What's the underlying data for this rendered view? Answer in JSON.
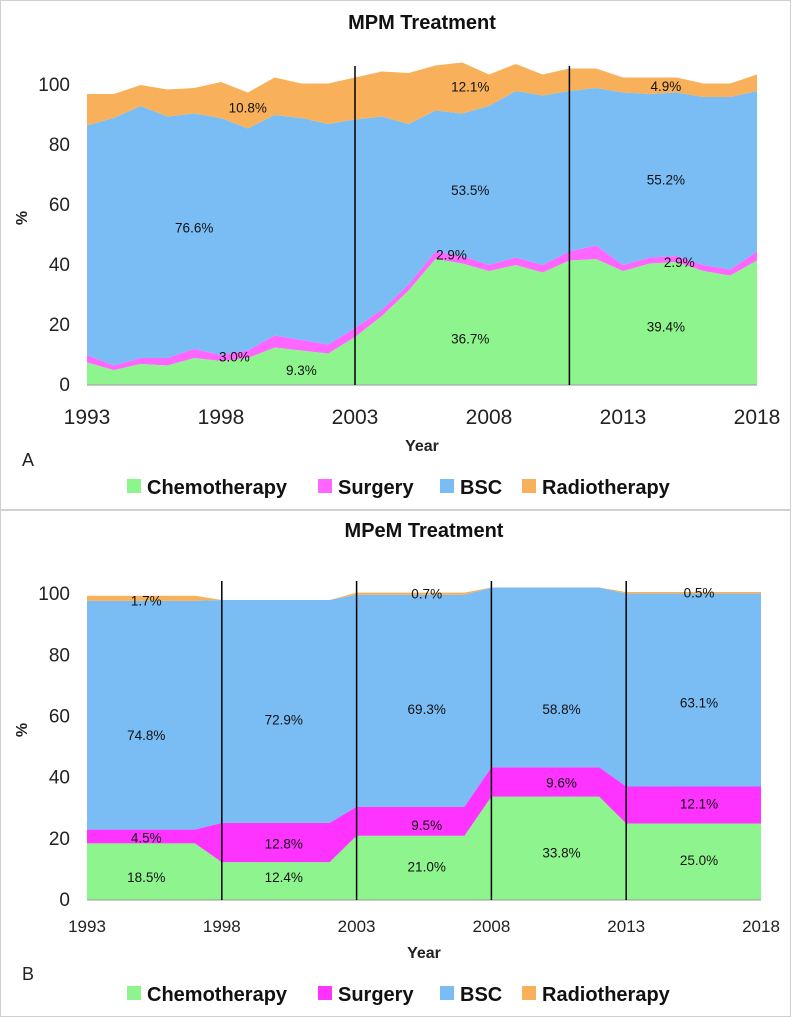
{
  "chart_data": [
    {
      "panel": "A",
      "type": "area",
      "stacked": true,
      "title": "MPM Treatment",
      "xlabel": "Year",
      "ylabel": "%",
      "xlim": [
        1993,
        2018
      ],
      "ylim": [
        0,
        105
      ],
      "xticks": [
        1993,
        1998,
        2003,
        2008,
        2013,
        2018
      ],
      "yticks": [
        0,
        20,
        40,
        60,
        80,
        100
      ],
      "x": [
        1993,
        1994,
        1995,
        1996,
        1997,
        1998,
        1999,
        2000,
        2001,
        2002,
        2003,
        2004,
        2005,
        2006,
        2007,
        2008,
        2009,
        2010,
        2011,
        2012,
        2013,
        2014,
        2015,
        2016,
        2017,
        2018
      ],
      "series": [
        {
          "name": "Chemotherapy",
          "color": "#8ef58e",
          "values": [
            7.5,
            5,
            7,
            6.5,
            9,
            8,
            9,
            12.5,
            11.5,
            10.5,
            16,
            23,
            31.5,
            42,
            40.5,
            38,
            40,
            37.5,
            41.5,
            42,
            38,
            40.5,
            41,
            38,
            36.5,
            41.5
          ]
        },
        {
          "name": "Surgery",
          "color": "#ff66ff",
          "values": [
            2.5,
            1.5,
            2,
            2.5,
            3,
            2,
            2.5,
            4,
            3.5,
            3,
            3,
            2,
            2,
            2.5,
            2.5,
            2,
            2.5,
            2.5,
            3,
            4.5,
            2,
            2,
            2,
            2,
            2,
            3
          ]
        },
        {
          "name": "BSC",
          "color": "#79bdf4",
          "values": [
            76.5,
            82.5,
            84,
            80.5,
            78.5,
            79,
            74,
            73.5,
            74,
            73.5,
            69.5,
            64.5,
            53.5,
            47,
            47.5,
            53,
            55.5,
            56.5,
            53.5,
            52.5,
            57.5,
            54.5,
            54.5,
            56,
            57.5,
            53.5
          ]
        },
        {
          "name": "Radiotherapy",
          "color": "#f8b15a",
          "values": [
            10.5,
            8,
            7,
            9,
            8.5,
            12,
            12,
            12.5,
            11.5,
            13.5,
            14,
            15,
            17,
            15,
            17,
            10.5,
            9,
            7,
            7.5,
            6.5,
            5,
            5.5,
            5,
            4.5,
            4.5,
            5.5
          ]
        }
      ],
      "period_dividers": [
        2003,
        2011
      ],
      "annotations": [
        {
          "text": "10.8%",
          "x": 1999,
          "y": 92.5
        },
        {
          "text": "76.6%",
          "x": 1997,
          "y": 52.5
        },
        {
          "text": "3.0%",
          "x": 1998.5,
          "y": 9.5
        },
        {
          "text": "9.3%",
          "x": 2001,
          "y": 5
        },
        {
          "text": "12.1%",
          "x": 2007.3,
          "y": 99.5
        },
        {
          "text": "53.5%",
          "x": 2007.3,
          "y": 65
        },
        {
          "text": "2.9%",
          "x": 2006.6,
          "y": 43.5
        },
        {
          "text": "36.7%",
          "x": 2007.3,
          "y": 15.5
        },
        {
          "text": "4.9%",
          "x": 2014.6,
          "y": 99.7
        },
        {
          "text": "55.2%",
          "x": 2014.6,
          "y": 68.5
        },
        {
          "text": "2.9%",
          "x": 2015.1,
          "y": 41
        },
        {
          "text": "39.4%",
          "x": 2014.6,
          "y": 19.5
        }
      ]
    },
    {
      "panel": "B",
      "type": "area",
      "stacked": true,
      "title": "MPeM Treatment",
      "xlabel": "Year",
      "ylabel": "%",
      "xlim": [
        1993,
        2018
      ],
      "ylim": [
        0,
        103
      ],
      "xticks": [
        1993,
        1998,
        2003,
        2008,
        2013,
        2018
      ],
      "yticks": [
        0,
        20,
        40,
        60,
        80,
        100
      ],
      "x": [
        1993,
        1997,
        1998,
        2002,
        2003,
        2007,
        2008,
        2012,
        2013,
        2018
      ],
      "series": [
        {
          "name": "Chemotherapy",
          "color": "#8ef58e",
          "values": [
            18.5,
            18.5,
            12.4,
            12.4,
            21,
            21,
            33.8,
            33.8,
            25,
            25
          ]
        },
        {
          "name": "Surgery",
          "color": "#ff33ff",
          "values": [
            4.5,
            4.5,
            12.8,
            12.8,
            9.5,
            9.5,
            9.6,
            9.6,
            12.1,
            12.1
          ]
        },
        {
          "name": "BSC",
          "color": "#79bdf4",
          "values": [
            74.8,
            74.8,
            72.9,
            72.9,
            69.3,
            69.3,
            58.8,
            58.8,
            63.1,
            63.1
          ]
        },
        {
          "name": "Radiotherapy",
          "color": "#f8b15a",
          "values": [
            1.7,
            1.7,
            0,
            0,
            0.7,
            0.7,
            0,
            0,
            0.5,
            0.5
          ]
        }
      ],
      "period_dividers": [
        1998,
        2003,
        2008,
        2013
      ],
      "annotations": [
        {
          "text": "1.7%",
          "x": 1995.2,
          "y": 98
        },
        {
          "text": "74.8%",
          "x": 1995.2,
          "y": 54
        },
        {
          "text": "4.5%",
          "x": 1995.2,
          "y": 20.5
        },
        {
          "text": "18.5%",
          "x": 1995.2,
          "y": 7.5
        },
        {
          "text": "72.9%",
          "x": 2000.3,
          "y": 59
        },
        {
          "text": "12.8%",
          "x": 2000.3,
          "y": 18.5
        },
        {
          "text": "12.4%",
          "x": 2000.3,
          "y": 7.5
        },
        {
          "text": "0.7%",
          "x": 2005.6,
          "y": 100.2
        },
        {
          "text": "69.3%",
          "x": 2005.6,
          "y": 62.5
        },
        {
          "text": "9.5%",
          "x": 2005.6,
          "y": 24.5
        },
        {
          "text": "21.0%",
          "x": 2005.6,
          "y": 11
        },
        {
          "text": "58.8%",
          "x": 2010.6,
          "y": 62.5
        },
        {
          "text": "9.6%",
          "x": 2010.6,
          "y": 38.5
        },
        {
          "text": "33.8%",
          "x": 2010.6,
          "y": 15.5
        },
        {
          "text": "0.5%",
          "x": 2015.7,
          "y": 100.5
        },
        {
          "text": "63.1%",
          "x": 2015.7,
          "y": 64.5
        },
        {
          "text": "12.1%",
          "x": 2015.7,
          "y": 31.5
        },
        {
          "text": "25.0%",
          "x": 2015.7,
          "y": 13
        }
      ]
    }
  ],
  "panel_labels": [
    "A",
    "B"
  ]
}
